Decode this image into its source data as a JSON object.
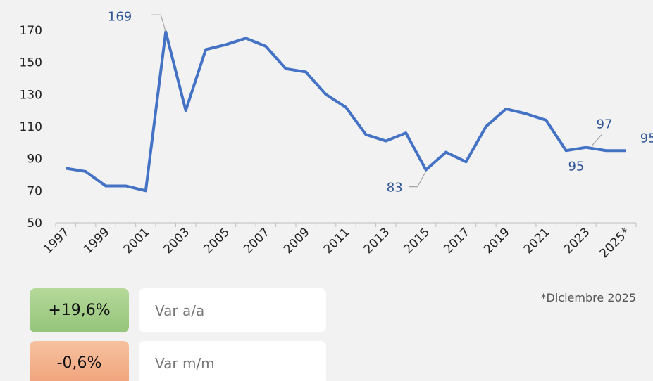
{
  "chart_data": {
    "type": "line",
    "categories": [
      "1997",
      null,
      "1999",
      null,
      "2001",
      null,
      "2003",
      null,
      "2005",
      null,
      "2007",
      null,
      "2009",
      null,
      "2011",
      null,
      "2013",
      null,
      "2015",
      null,
      "2017",
      null,
      "2019",
      null,
      "2021",
      null,
      "2023",
      null,
      "2025*"
    ],
    "series": [
      {
        "name": null,
        "color": "#4472c4",
        "values": [
          84,
          82,
          73,
          73,
          70,
          169,
          120,
          158,
          161,
          165,
          160,
          146,
          144,
          130,
          122,
          105,
          101,
          106,
          83,
          94,
          88,
          110,
          121,
          118,
          114,
          95,
          97,
          95,
          95
        ],
        "value_labels": [
          null,
          null,
          null,
          null,
          null,
          "169",
          null,
          null,
          null,
          null,
          null,
          null,
          null,
          null,
          null,
          null,
          null,
          null,
          "83",
          null,
          null,
          null,
          null,
          null,
          null,
          null,
          "97",
          "95",
          "95"
        ]
      }
    ],
    "ylim": [
      50,
      175
    ],
    "yticks": [
      50,
      70,
      90,
      110,
      130,
      150,
      170
    ],
    "grid": false,
    "footnote": "*Diciembre 2025",
    "indicators": [
      {
        "value": "+19,6%",
        "label": "Var a/a"
      },
      {
        "value": "-0,6%",
        "label": "Var m/m"
      }
    ]
  }
}
